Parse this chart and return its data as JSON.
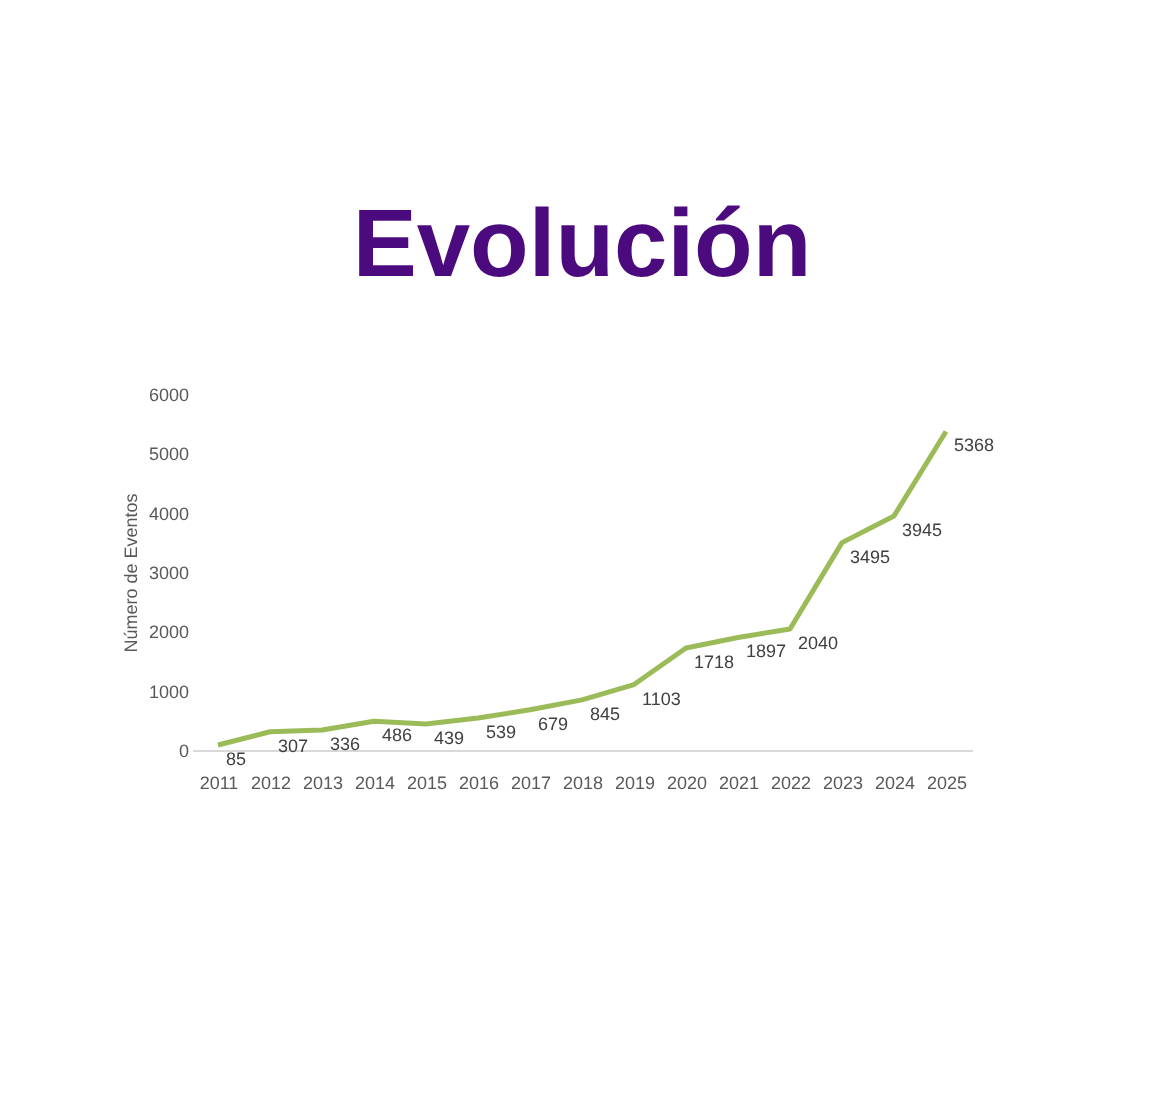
{
  "chart_data": {
    "type": "line",
    "title": "Evolución",
    "ylabel": "Número de Eventos",
    "categories": [
      "2011",
      "2012",
      "2013",
      "2014",
      "2015",
      "2016",
      "2017",
      "2018",
      "2019",
      "2020",
      "2021",
      "2022",
      "2023",
      "2024",
      "2025"
    ],
    "series": [
      {
        "color": "#9bbb59",
        "values": [
          85,
          307,
          336,
          486,
          439,
          539,
          679,
          845,
          1103,
          1718,
          1897,
          2040,
          3495,
          3945,
          5368
        ]
      }
    ],
    "ylim": [
      0,
      6000
    ],
    "yticks": [
      0,
      1000,
      2000,
      3000,
      4000,
      5000,
      6000
    ],
    "data_labels": true,
    "grid": false,
    "legend": false,
    "marker": "none",
    "line_style": "solid"
  }
}
